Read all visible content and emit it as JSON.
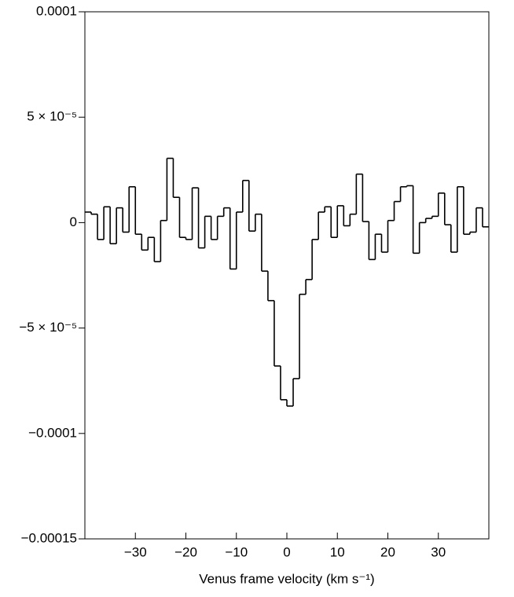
{
  "chart_data": {
    "type": "histogram",
    "x_label": "Venus frame velocity (km s⁻¹)",
    "xlim": [
      -40,
      40
    ],
    "ylim": [
      -0.00015,
      0.0001
    ],
    "xticks": [
      {
        "value": -30,
        "label": "−30"
      },
      {
        "value": -20,
        "label": "−20"
      },
      {
        "value": -10,
        "label": "−10"
      },
      0,
      10,
      20,
      30
    ],
    "yticks": [
      {
        "value": -0.00015,
        "label": "−0.00015"
      },
      {
        "value": -0.0001,
        "label": "−0.0001"
      },
      {
        "value": -5e-05,
        "label": "−5 × 10⁻⁵"
      },
      0,
      {
        "value": 5e-05,
        "label": "5 × 10⁻⁵"
      },
      0.0001
    ],
    "color": "#000000",
    "bins": [
      -40,
      -38.75,
      -37.5,
      -36.25,
      -35,
      -33.75,
      -32.5,
      -31.25,
      -30,
      -28.75,
      -27.5,
      -26.25,
      -25,
      -23.75,
      -22.5,
      -21.25,
      -20,
      -18.75,
      -17.5,
      -16.25,
      -15,
      -13.75,
      -12.5,
      -11.25,
      -10,
      -8.75,
      -7.5,
      -6.25,
      -5,
      -3.75,
      -2.5,
      -1.25,
      0,
      1.25,
      2.5,
      3.75,
      5,
      6.25,
      7.5,
      8.75,
      10,
      11.25,
      12.5,
      13.75,
      15,
      16.25,
      17.5,
      18.75,
      20,
      21.25,
      22.5,
      23.75,
      25,
      26.25,
      27.5,
      28.75,
      30,
      31.25,
      32.5,
      33.75,
      35,
      36.25,
      37.5,
      38.75,
      40
    ],
    "values": [
      5e-06,
      4e-06,
      -8e-06,
      7.5e-06,
      -1e-05,
      7e-06,
      -4.5e-06,
      1.7e-05,
      -5.5e-06,
      -1.3e-05,
      -7e-06,
      -1.85e-05,
      1e-06,
      3.05e-05,
      1.2e-05,
      -7e-06,
      -8e-06,
      1.65e-05,
      -1.2e-05,
      3e-06,
      -8e-06,
      3e-06,
      7e-06,
      -2.2e-05,
      5e-06,
      2e-05,
      -4e-06,
      4e-06,
      -2.3e-05,
      -3.7e-05,
      -6.8e-05,
      -8.4e-05,
      -8.7e-05,
      -7.4e-05,
      -3.4e-05,
      -2.7e-05,
      -8e-06,
      5e-06,
      7.5e-06,
      -7e-06,
      8e-06,
      -1.5e-06,
      4e-06,
      2.3e-05,
      5e-07,
      -1.75e-05,
      -5.5e-06,
      -1.4e-05,
      1e-06,
      1e-05,
      1.7e-05,
      1.75e-05,
      -1.45e-05,
      0,
      2e-06,
      3e-06,
      1.4e-05,
      -1e-06,
      -1.4e-05,
      1.7e-05,
      -5.5e-06,
      -4.5e-06,
      7e-06,
      -2e-06
    ]
  }
}
